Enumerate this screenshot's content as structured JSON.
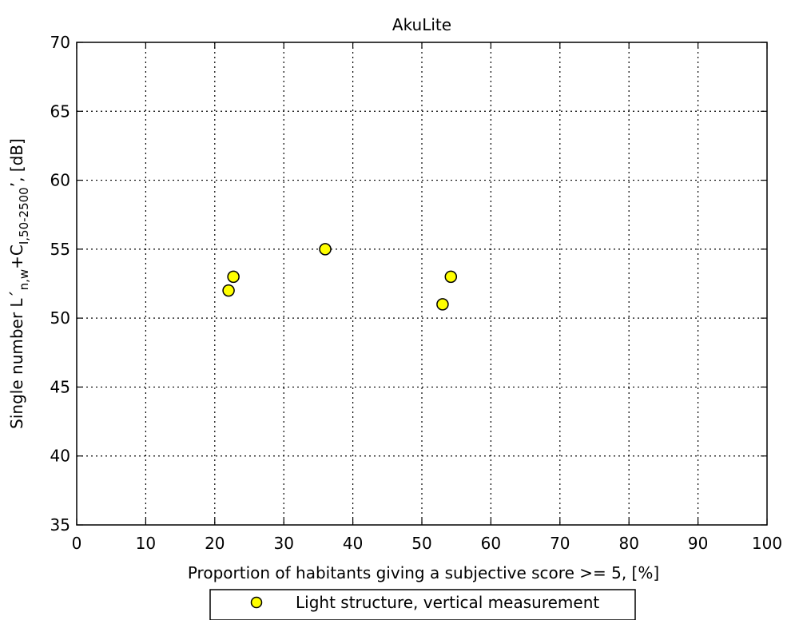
{
  "chart_data": {
    "type": "scatter",
    "title": "AkuLite",
    "xlabel": "Proportion of habitants giving a subjective score >= 5, [%]",
    "ylabel": {
      "prefix": "Single number L´",
      "sub1": "n,w",
      "mid": "+C",
      "sub2": "I,50-2500",
      "suffix": "’, [dB]"
    },
    "xlim": [
      0,
      100
    ],
    "ylim": [
      35,
      70
    ],
    "xticks": [
      0,
      10,
      20,
      30,
      40,
      50,
      60,
      70,
      80,
      90,
      100
    ],
    "yticks": [
      35,
      40,
      45,
      50,
      55,
      60,
      65,
      70
    ],
    "grid": true,
    "legend_position": "bottom-center",
    "series": [
      {
        "name": "Light structure, vertical measurement",
        "marker": "circle",
        "color": "#ffff00",
        "edge_color": "#000000",
        "points": [
          {
            "x": 22.0,
            "y": 52
          },
          {
            "x": 22.7,
            "y": 53
          },
          {
            "x": 36.0,
            "y": 55
          },
          {
            "x": 53.0,
            "y": 51
          },
          {
            "x": 54.2,
            "y": 53
          }
        ]
      }
    ]
  }
}
